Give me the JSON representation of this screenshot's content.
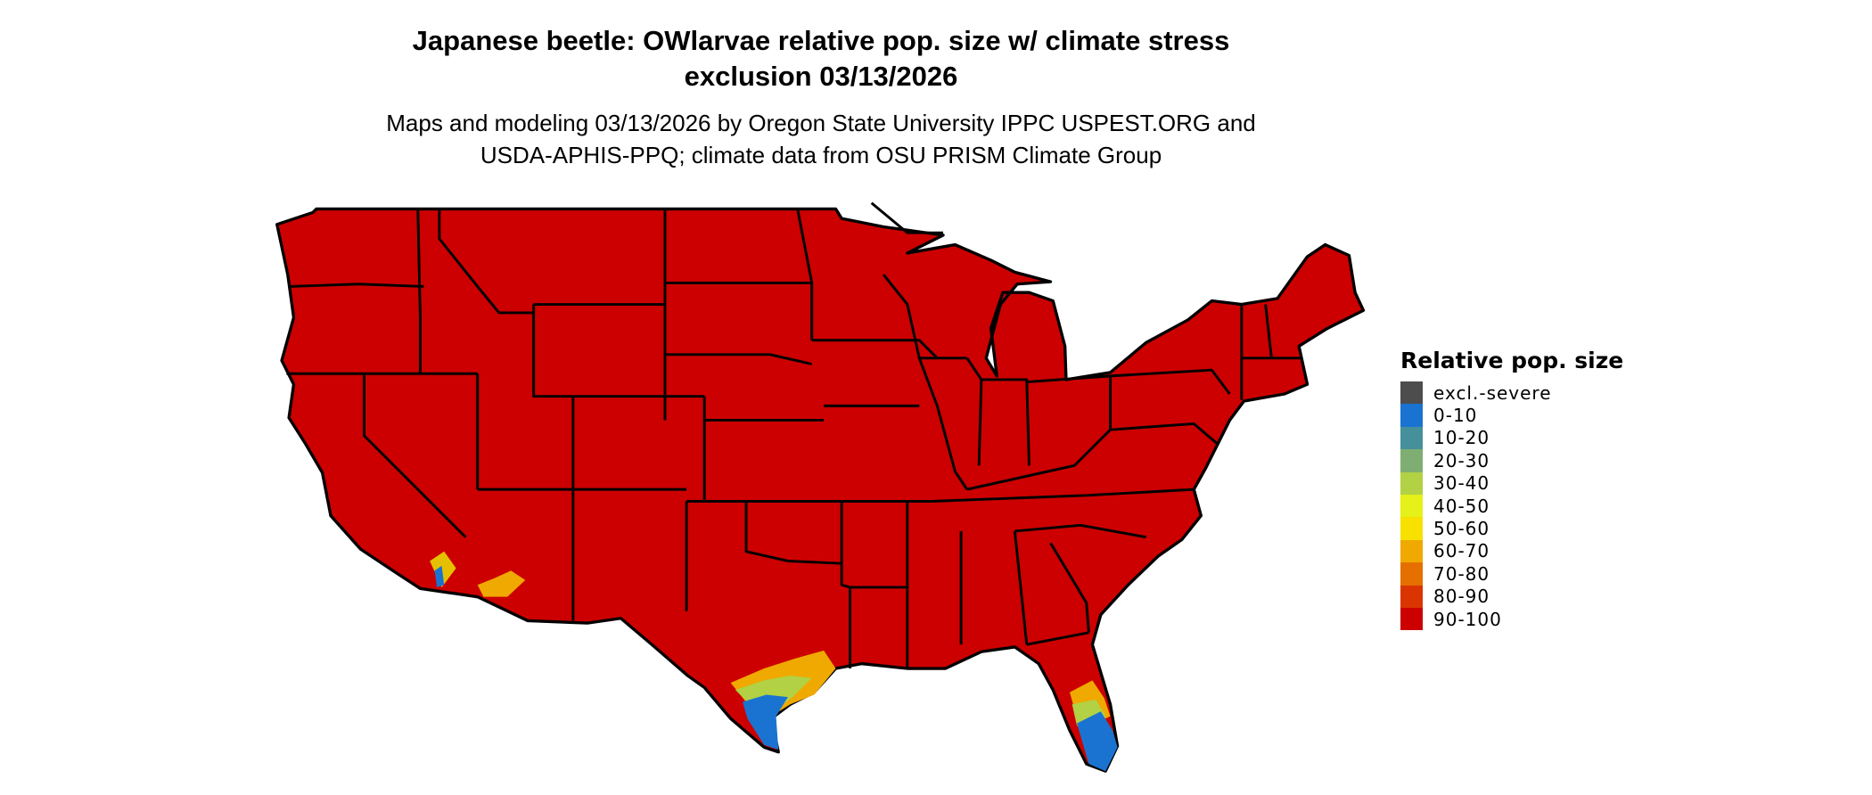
{
  "title": {
    "line1": "Japanese beetle: OWlarvae relative pop. size w/ climate stress",
    "line2": "exclusion 03/13/2026"
  },
  "subtitle": {
    "line1": "Maps and modeling 03/13/2026 by Oregon State University IPPC USPEST.ORG and",
    "line2": "USDA-APHIS-PPQ; climate data from OSU PRISM Climate Group"
  },
  "map": {
    "region": "Contiguous United States",
    "dominant_class": "90-100",
    "state_border_color": "#000000"
  },
  "legend": {
    "title": "Relative pop. size",
    "items": [
      {
        "label": "excl.-severe",
        "color": "#4d4d4d"
      },
      {
        "label": "0-10",
        "color": "#1a73d0"
      },
      {
        "label": "10-20",
        "color": "#45909a"
      },
      {
        "label": "20-30",
        "color": "#7eae72"
      },
      {
        "label": "30-40",
        "color": "#b2d145"
      },
      {
        "label": "40-50",
        "color": "#e6f019"
      },
      {
        "label": "50-60",
        "color": "#f8e100"
      },
      {
        "label": "60-70",
        "color": "#efa900"
      },
      {
        "label": "70-80",
        "color": "#e57000"
      },
      {
        "label": "80-90",
        "color": "#da3500"
      },
      {
        "label": "90-100",
        "color": "#cc0000"
      }
    ]
  }
}
